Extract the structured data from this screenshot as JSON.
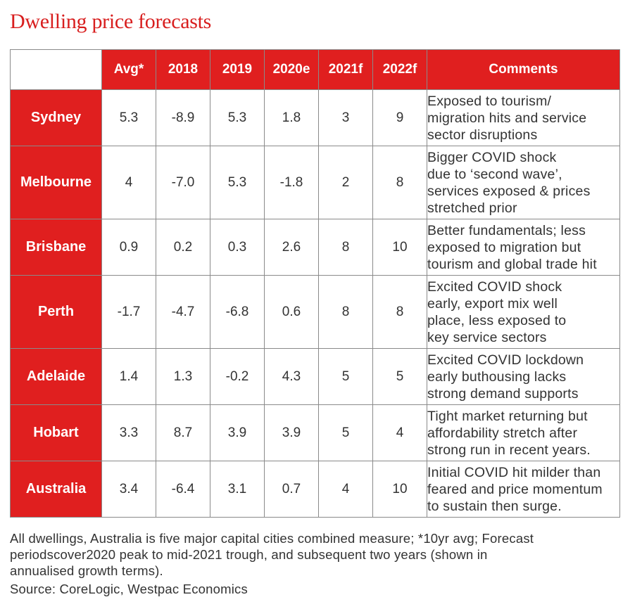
{
  "title": "Dwelling price forecasts",
  "chart_data": {
    "type": "table",
    "columns": [
      "Avg*",
      "2018",
      "2019",
      "2020e",
      "2021f",
      "2022f",
      "Comments"
    ],
    "rows": [
      {
        "label": "Sydney",
        "values": [
          "5.3",
          "-8.9",
          "5.3",
          "1.8",
          "3",
          "9"
        ],
        "comment": [
          "Exposed to tourism/",
          "migration hits and service",
          "sector disruptions"
        ]
      },
      {
        "label": "Melbourne",
        "values": [
          "4",
          "-7.0",
          "5.3",
          "-1.8",
          "2",
          "8"
        ],
        "comment": [
          "Bigger COVID shock",
          "due to ‘second wave’,",
          "services exposed & prices",
          "stretched prior"
        ]
      },
      {
        "label": "Brisbane",
        "values": [
          "0.9",
          "0.2",
          "0.3",
          "2.6",
          "8",
          "10"
        ],
        "comment": [
          "Better fundamentals; less",
          "exposed to migration but",
          "tourism and global trade hit"
        ]
      },
      {
        "label": "Perth",
        "values": [
          "-1.7",
          "-4.7",
          "-6.8",
          "0.6",
          "8",
          "8"
        ],
        "comment": [
          "Excited COVID shock",
          "early, export mix well",
          "place, less exposed to",
          "key service sectors"
        ]
      },
      {
        "label": "Adelaide",
        "values": [
          "1.4",
          "1.3",
          "-0.2",
          "4.3",
          "5",
          "5"
        ],
        "comment": [
          "Excited COVID lockdown",
          "early buthousing lacks",
          "strong demand supports"
        ]
      },
      {
        "label": "Hobart",
        "values": [
          "3.3",
          "8.7",
          "3.9",
          "3.9",
          "5",
          "4"
        ],
        "comment": [
          "Tight market returning but",
          "affordability stretch after",
          "strong run in recent years."
        ]
      },
      {
        "label": "Australia",
        "values": [
          "3.4",
          "-6.4",
          "3.1",
          "0.7",
          "4",
          "10"
        ],
        "comment": [
          "Initial COVID hit milder than",
          "feared and price momentum",
          "to sustain then surge."
        ]
      }
    ]
  },
  "footnote": [
    "All dwellings, Australia is five major capital cities combined measure; *10yr avg; Forecast",
    "periodscover2020 peak to mid-2021 trough, and subsequent two years (shown in",
    "annualised growth terms)."
  ],
  "source": "Source: CoreLogic, Westpac Economics",
  "colors": {
    "accent": "#e01f1f",
    "title": "#d81e1e",
    "border": "#8a8a8a"
  }
}
